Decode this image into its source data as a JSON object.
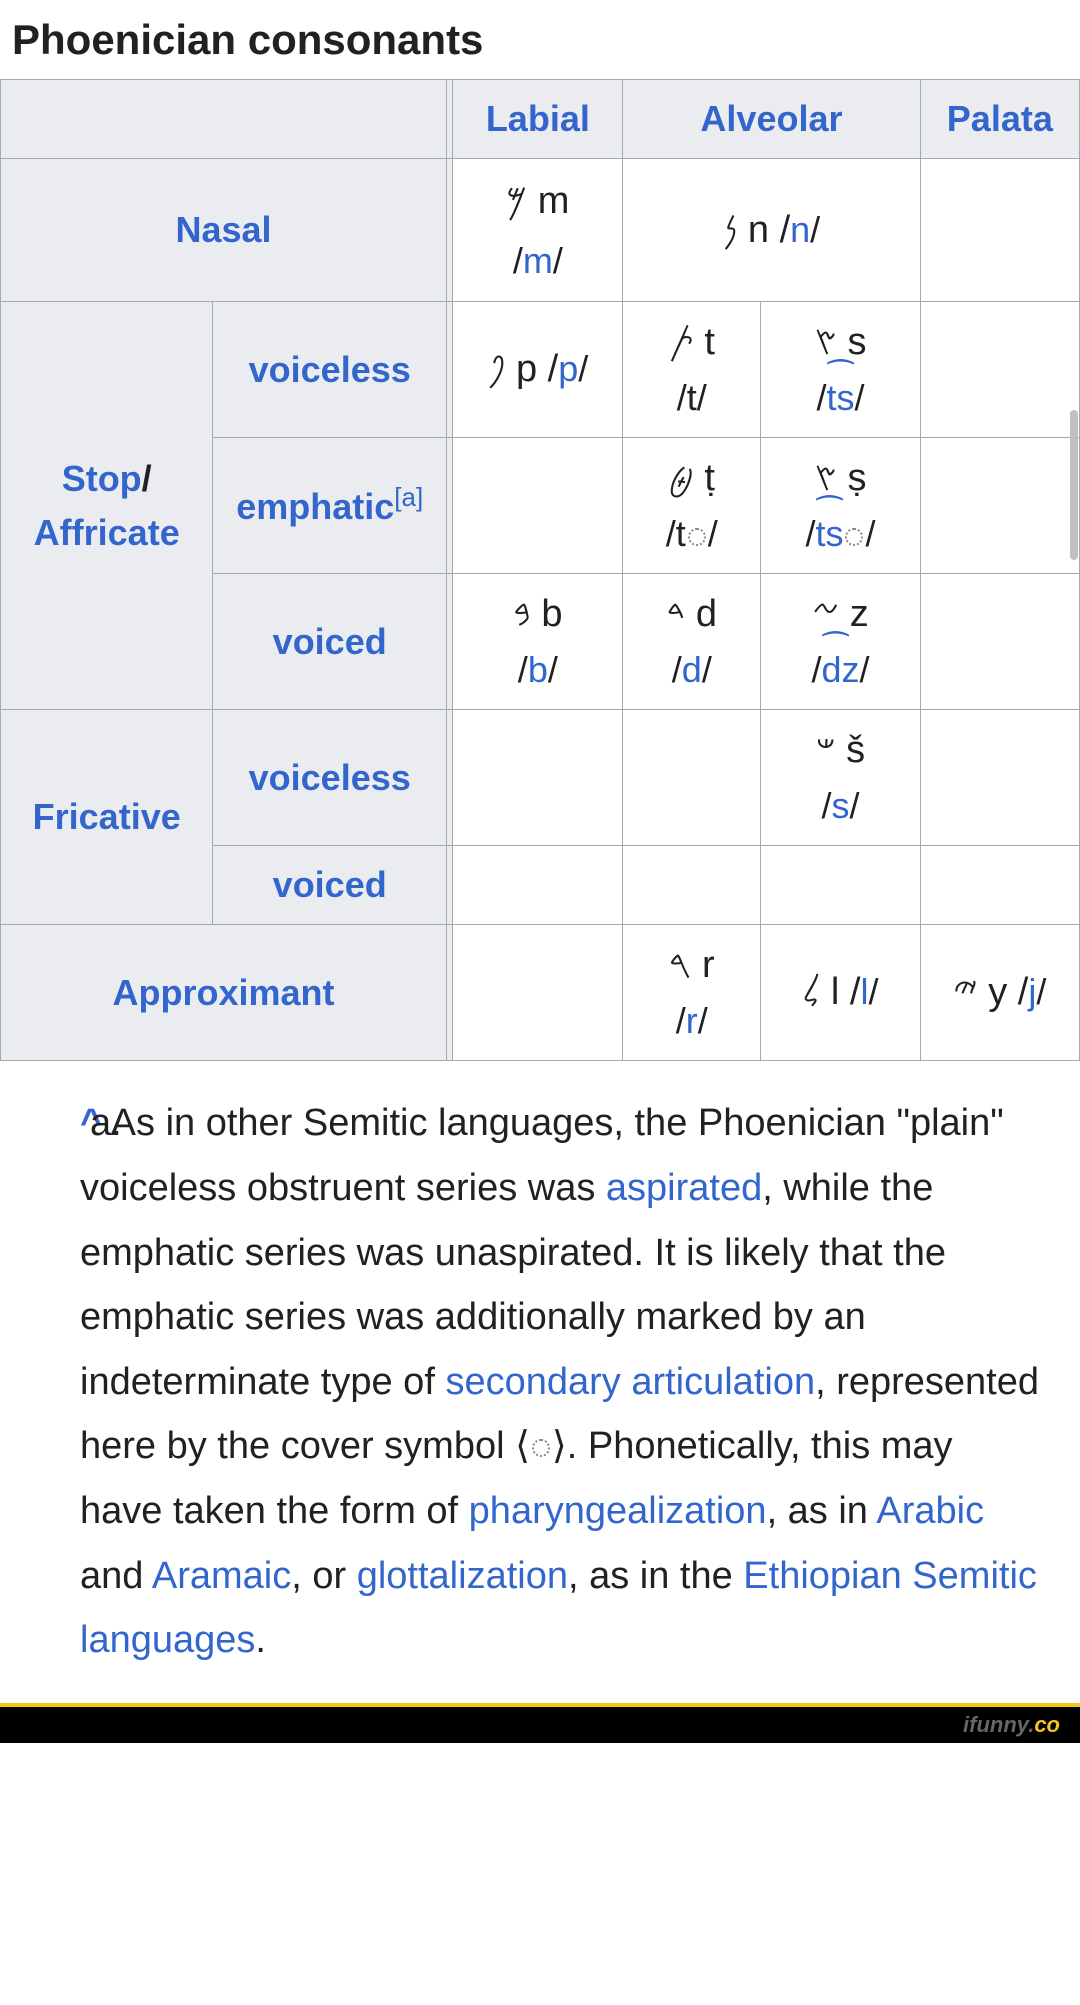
{
  "title": "Phoenician consonants",
  "headers": {
    "labial": "Labial",
    "alveolar": "Alveolar",
    "palatal": "Palata"
  },
  "rows": {
    "nasal": {
      "label": "Nasal"
    },
    "stop_affricate": {
      "label_stop": "Stop",
      "label_slash": "/",
      "label_aff": "Affricate"
    },
    "voiceless": {
      "label": "voiceless"
    },
    "emphatic": {
      "label": "emphatic",
      "sup": "[a]"
    },
    "voiced": {
      "label": "voiced"
    },
    "fricative": {
      "label": "Fricative"
    },
    "approximant": {
      "label": "Approximant"
    }
  },
  "cells": {
    "nasal_labial": {
      "glyph": "𐤌 m",
      "ipa_pre": "/",
      "ipa_link": "m",
      "ipa_post": "/"
    },
    "nasal_alveolar": {
      "glyph": "𐤍 n /",
      "ipa_link": "n",
      "ipa_post": "/"
    },
    "stop_vl_labial": {
      "glyph": "𐤐 p /",
      "ipa_link": "p",
      "ipa_post": "/"
    },
    "stop_vl_alv1": {
      "glyph": "𐤕 t",
      "ipa": "/t/"
    },
    "stop_vl_alv2": {
      "glyph": "𐤑 s",
      "ipa_pre": "/",
      "ipa_link": "ts",
      "ipa_post": "/"
    },
    "stop_emph_alv1": {
      "glyph": "𐤈 ṭ",
      "ipa_pre": "/t",
      "ipa_post": "/"
    },
    "stop_emph_alv2": {
      "glyph": "𐤑 ṣ",
      "ipa_pre": "/",
      "ipa_link": "ts",
      "ipa_post": "/"
    },
    "stop_vd_labial": {
      "glyph": "𐤁 b",
      "ipa_pre": "/",
      "ipa_link": "b",
      "ipa_post": "/"
    },
    "stop_vd_alv1": {
      "glyph": "𐤃 d",
      "ipa_pre": "/",
      "ipa_link": "d",
      "ipa_post": "/"
    },
    "stop_vd_alv2": {
      "glyph": "𐤆 z",
      "ipa_pre": "/",
      "ipa_link": "dz",
      "ipa_post": "/"
    },
    "fric_vl_alv2": {
      "glyph": "𐤔 š",
      "ipa_pre": "/",
      "ipa_link": "s",
      "ipa_post": "/"
    },
    "approx_alv1": {
      "glyph": "𐤓 r",
      "ipa_pre": "/",
      "ipa_link": "r",
      "ipa_post": "/"
    },
    "approx_alv2": {
      "glyph": "𐤋 l /",
      "ipa_link": "l",
      "ipa_post": "/"
    },
    "approx_pal": {
      "glyph": "𐤉 y /",
      "ipa_link": "j",
      "ipa_post": "/"
    }
  },
  "note": {
    "marker": "a.",
    "caret": "^",
    "t1": " As in other Semitic languages, the Phoenician \"plain\" voiceless obstruent series was ",
    "l1": "aspirated",
    "t2": ", while the emphatic series was unaspirated. It is likely that the emphatic series was additionally marked by an indeterminate type of ",
    "l2": "secondary articulation",
    "t3": ", represented here by the cover symbol ⟨",
    "t3b": "⟩. Phonetically, this may have taken the form of ",
    "l3": "pharyngealization",
    "t4": ", as in ",
    "l4": "Arabic",
    "t5": " and ",
    "l5": "Aramaic",
    "t6": ", or ",
    "l6": "glottalization",
    "t7": ", as in the ",
    "l7": "Ethiopian Semitic languages",
    "t8": "."
  },
  "footer": {
    "brand": "ifunny.",
    "tld": "co"
  },
  "colors": {
    "link": "#3366cc",
    "header_bg": "#eaecf0",
    "border": "#a2a9b1",
    "text": "#202122",
    "footer_bg": "#000000",
    "footer_accent": "#f5c518"
  }
}
